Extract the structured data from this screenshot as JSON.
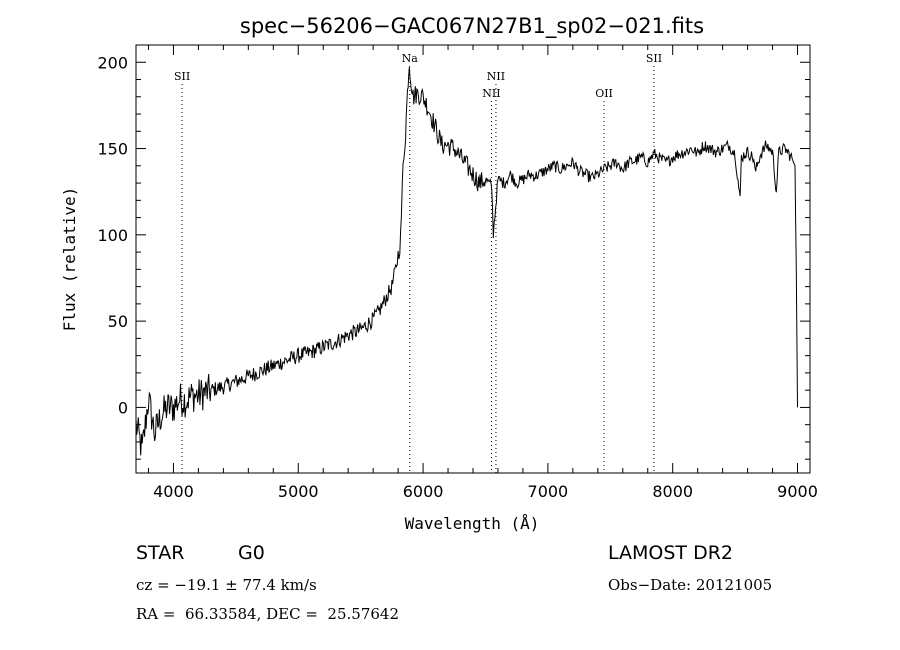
{
  "chart_data": {
    "type": "line",
    "title": "spec−56206−GAC067N27B1_sp02−021.fits",
    "xlabel": "Wavelength (Å)",
    "ylabel": "Flux (relative)",
    "xlim": [
      3700,
      9100
    ],
    "ylim": [
      -38,
      210
    ],
    "x_ticks": [
      4000,
      5000,
      6000,
      7000,
      8000,
      9000
    ],
    "y_ticks": [
      0,
      50,
      100,
      150,
      200
    ],
    "grid": false,
    "line_color": "#000000",
    "marker_style": "dotted",
    "series": [
      {
        "x": [
          3700,
          3750,
          3800,
          3850,
          3900,
          3950,
          4000,
          4050,
          4100,
          4150,
          4200,
          4300,
          4400,
          4500,
          4600,
          4700,
          4800,
          4900,
          5000,
          5100,
          5200,
          5300,
          5400,
          5500,
          5600,
          5650,
          5700,
          5750,
          5780,
          5800,
          5820,
          5840,
          5860,
          5870,
          5880,
          5890,
          5900,
          5920,
          5950,
          6000,
          6050,
          6100,
          6150,
          6200,
          6250,
          6300,
          6350,
          6400,
          6450,
          6500,
          6550,
          6563,
          6600,
          6650,
          6700,
          6750,
          6800,
          6850,
          6900,
          6950,
          7000,
          7050,
          7100,
          7150,
          7200,
          7250,
          7300,
          7350,
          7400,
          7450,
          7500,
          7550,
          7600,
          7650,
          7700,
          7750,
          7800,
          7850,
          7900,
          7950,
          8000,
          8050,
          8100,
          8150,
          8200,
          8250,
          8300,
          8350,
          8400,
          8450,
          8500,
          8540,
          8550,
          8600,
          8650,
          8660,
          8700,
          8750,
          8800,
          8830,
          8850,
          8900,
          8950,
          8980,
          8990,
          9000
        ],
        "y": [
          -10,
          -25,
          5,
          -15,
          -5,
          0,
          0,
          5,
          4,
          7,
          7,
          10,
          12,
          15,
          18,
          21,
          24,
          27,
          30,
          32,
          35,
          38,
          42,
          45,
          51,
          56,
          63,
          70,
          80,
          88,
          98,
          140,
          160,
          175,
          190,
          200,
          192,
          180,
          182,
          180,
          172,
          162,
          152,
          152,
          150,
          145,
          140,
          135,
          130,
          132,
          128,
          101,
          132,
          130,
          135,
          130,
          132,
          135,
          134,
          136,
          138,
          140,
          138,
          140,
          142,
          137,
          135,
          133,
          135,
          138,
          140,
          142,
          138,
          142,
          143,
          145,
          142,
          147,
          144,
          142,
          145,
          147,
          148,
          150,
          147,
          152,
          150,
          148,
          150,
          152,
          147,
          120,
          145,
          148,
          144,
          136,
          146,
          152,
          148,
          125,
          148,
          150,
          145,
          140,
          80,
          0
        ]
      }
    ],
    "line_markers": [
      {
        "label": "SII",
        "x": 4069,
        "label_level": 1
      },
      {
        "label": "Na",
        "x": 5893,
        "label_level": 0
      },
      {
        "label": "NII",
        "x": 6548,
        "label_level": 2
      },
      {
        "label": "NII",
        "x": 6584,
        "label_level": 1
      },
      {
        "label": "OII",
        "x": 7450,
        "label_level": 2
      },
      {
        "label": "SII",
        "x": 7850,
        "label_level": 0
      }
    ]
  },
  "info": {
    "class_label": "STAR",
    "subclass_label": "G0",
    "survey_label": "LAMOST DR2",
    "redshift_text": "cz = −19.1 ± 77.4 km/s",
    "obs_date_text": "Obs−Date: 20121005",
    "coords_text": "RA =  66.33584, DEC =  25.57642"
  }
}
